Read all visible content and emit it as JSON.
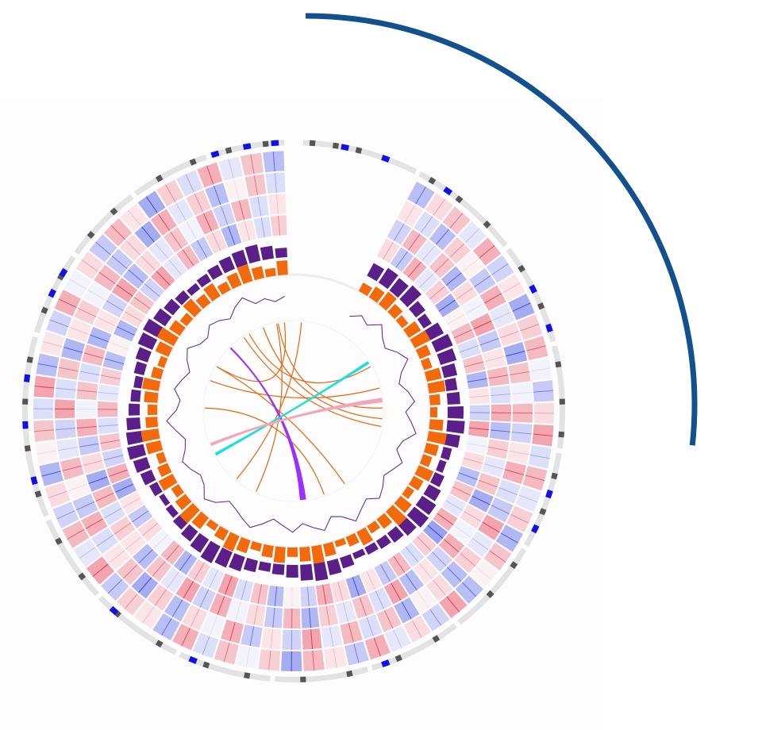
{
  "chart_data": {
    "type": "circos",
    "ideogram": {
      "color": "#e3e3e3",
      "starts": [
        2,
        28,
        53,
        76,
        99,
        121,
        143,
        164,
        185,
        206,
        227,
        247,
        267,
        287,
        306,
        324,
        342
      ],
      "ends": [
        27,
        52,
        75,
        98,
        120,
        142,
        163,
        184,
        205,
        226,
        246,
        266,
        286,
        305,
        323,
        341,
        358
      ],
      "dark_color": "#555555",
      "blue_color": "#1010e8",
      "dark_bands": [
        4,
        9,
        14,
        31,
        38,
        46,
        58,
        67,
        80,
        88,
        95,
        104,
        112,
        125,
        133,
        148,
        157,
        168,
        178,
        190,
        199,
        210,
        221,
        232,
        241,
        252,
        262,
        272,
        281,
        292,
        300,
        311,
        318,
        330,
        338,
        346,
        354
      ],
      "blue_bands": [
        11,
        20,
        35,
        63,
        72,
        108,
        116,
        160,
        202,
        222,
        255,
        267,
        277,
        296,
        301,
        343,
        350,
        356
      ]
    },
    "track_start": 28,
    "track_step": 5,
    "heatmap": {
      "negative_color": "#2233dd",
      "positive_color": "#e0203a",
      "rows": [
        [
          3,
          -5,
          7,
          -2,
          4,
          -8,
          1,
          6,
          -3,
          5,
          -7,
          2,
          -4,
          8,
          -1,
          3,
          -6,
          5,
          -2,
          7,
          -9,
          4,
          -3,
          6,
          -5,
          2,
          -8,
          3,
          7,
          -4,
          1,
          -6,
          5,
          -3,
          8,
          -2,
          4,
          -7,
          6,
          -1,
          3,
          -5,
          2,
          -8,
          7,
          -4,
          5,
          -3,
          6,
          -2,
          4,
          -6,
          1,
          -7,
          3,
          5,
          -4,
          8,
          -2,
          6,
          -5,
          3,
          -7,
          2,
          -3,
          4
        ],
        [
          -4,
          6,
          -2,
          5,
          -7,
          3,
          -1,
          8,
          -5,
          2,
          6,
          -3,
          7,
          -6,
          4,
          -2,
          5,
          -8,
          3,
          -1,
          7,
          -4,
          2,
          -6,
          8,
          -3,
          5,
          -2,
          4,
          -7,
          6,
          -5,
          3,
          -1,
          7,
          -4,
          8,
          -2,
          5,
          -6,
          2,
          4,
          -3,
          6,
          -8,
          3,
          -5,
          7,
          -1,
          5,
          -3,
          6,
          -7,
          2,
          -4,
          8,
          -6,
          3,
          -2,
          5,
          -1,
          7,
          -4,
          6,
          -3,
          2
        ],
        [
          2,
          -3,
          -6,
          4,
          1,
          -5,
          7,
          -2,
          3,
          -8,
          5,
          -1,
          6,
          -4,
          2,
          7,
          -3,
          -5,
          8,
          -2,
          4,
          -6,
          3,
          1,
          -7,
          5,
          -3,
          6,
          -2,
          8,
          -4,
          2,
          -5,
          7,
          -1,
          3,
          -6,
          4,
          -8,
          5,
          2,
          -3,
          7,
          -5,
          1,
          6,
          -2,
          -4,
          8,
          -3,
          5,
          -7,
          2,
          4,
          -1,
          6,
          -5,
          3,
          -8,
          7,
          -2,
          4,
          -6,
          1,
          5,
          -3
        ],
        [
          -6,
          3,
          5,
          -2,
          7,
          -4,
          2,
          -8,
          4,
          6,
          -1,
          -5,
          3,
          8,
          -3,
          6,
          -2,
          4,
          -7,
          5,
          1,
          -6,
          8,
          -4,
          3,
          -2,
          7,
          -5,
          2,
          6,
          -8,
          4,
          -1,
          5,
          -3,
          7,
          -6,
          2,
          4,
          -5,
          8,
          -2,
          6,
          -4,
          3,
          -7,
          1,
          5,
          -3,
          8,
          -6,
          2,
          -4,
          7,
          -1,
          3,
          -5,
          6,
          2,
          -8,
          4,
          -3,
          7,
          -2,
          5,
          -6
        ]
      ]
    },
    "histograms": [
      {
        "color": "#5b1f8a",
        "values": [
          18,
          22,
          20,
          24,
          15,
          12,
          19,
          23,
          21,
          17,
          14,
          16,
          20,
          22,
          18,
          11,
          9,
          13,
          17,
          21,
          23,
          19,
          15,
          12,
          10,
          8,
          14,
          18,
          22,
          20,
          16,
          13,
          11,
          15,
          19,
          21,
          24,
          20,
          16,
          12,
          9,
          7,
          11,
          15,
          18,
          21,
          19,
          17,
          14,
          12,
          10,
          13,
          16,
          20,
          22,
          18,
          15,
          12,
          9,
          11,
          14,
          17,
          19,
          21,
          16,
          12
        ]
      },
      {
        "color": "#f26a0c",
        "values": [
          12,
          16,
          20,
          14,
          10,
          18,
          22,
          15,
          11,
          19,
          21,
          13,
          9,
          17,
          23,
          16,
          12,
          20,
          14,
          10,
          18,
          24,
          15,
          11,
          19,
          13,
          8,
          16,
          22,
          18,
          12,
          20,
          15,
          10,
          17,
          21,
          14,
          9,
          18,
          23,
          16,
          11,
          20,
          14,
          10,
          19,
          22,
          15,
          12,
          17,
          21,
          13,
          9,
          18,
          24,
          16,
          11,
          20,
          14,
          19,
          12,
          17,
          22,
          15,
          10,
          18
        ]
      }
    ],
    "line": {
      "color": "#5b1f8a",
      "values": [
        5,
        12,
        8,
        18,
        10,
        6,
        14,
        20,
        9,
        4,
        11,
        16,
        7,
        13,
        19,
        8,
        5,
        15,
        10,
        6,
        12,
        17,
        9,
        14,
        21,
        11,
        7,
        18,
        13,
        8,
        16,
        10,
        5,
        12,
        19,
        14,
        9,
        6,
        15,
        20,
        11,
        8,
        13,
        17,
        10,
        7,
        14,
        22,
        12,
        9,
        16,
        11,
        6,
        13,
        18,
        10,
        8,
        15,
        12,
        7,
        14,
        19,
        9,
        11,
        6,
        10
      ]
    },
    "links": [
      {
        "start": 349,
        "end": 205,
        "start_width": 0,
        "end_width": 0,
        "color": "#e8650a"
      },
      {
        "start": 354,
        "end": 300,
        "start_width": 0,
        "end_width": 0,
        "color": "#e8650a"
      },
      {
        "start": 326,
        "end": 100,
        "start_width": 0,
        "end_width": 0,
        "color": "#e8650a"
      },
      {
        "start": 290,
        "end": 75,
        "start_width": 0,
        "end_width": 0,
        "color": "#e8650a"
      },
      {
        "start": 330,
        "end": 60,
        "start_width": 0,
        "end_width": 0,
        "color": "#e8650a"
      },
      {
        "start": 300,
        "end": 145,
        "start_width": 0,
        "end_width": 0,
        "color": "#e8650a"
      },
      {
        "start": 350,
        "end": 88,
        "start_width": 0,
        "end_width": 0,
        "color": "#e8650a"
      },
      {
        "start": 340,
        "end": 95,
        "start_width": 0,
        "end_width": 0,
        "color": "#e8650a"
      },
      {
        "start": 272,
        "end": 160,
        "start_width": 0,
        "end_width": 0,
        "color": "#e8650a"
      },
      {
        "start": 5,
        "end": 220,
        "start_width": 0,
        "end_width": 0,
        "color": "#e8650a"
      },
      {
        "start": 315,
        "end": 174,
        "start_width": 0.6,
        "end_width": 3.5,
        "color": "#9b30ff"
      },
      {
        "start": 57,
        "end": 241,
        "start_width": 1.5,
        "end_width": 1.5,
        "color": "#1de0e0"
      },
      {
        "start": 83,
        "end": 248,
        "start_width": 2.5,
        "end_width": 1.5,
        "color": "#f4a6b8"
      }
    ]
  }
}
